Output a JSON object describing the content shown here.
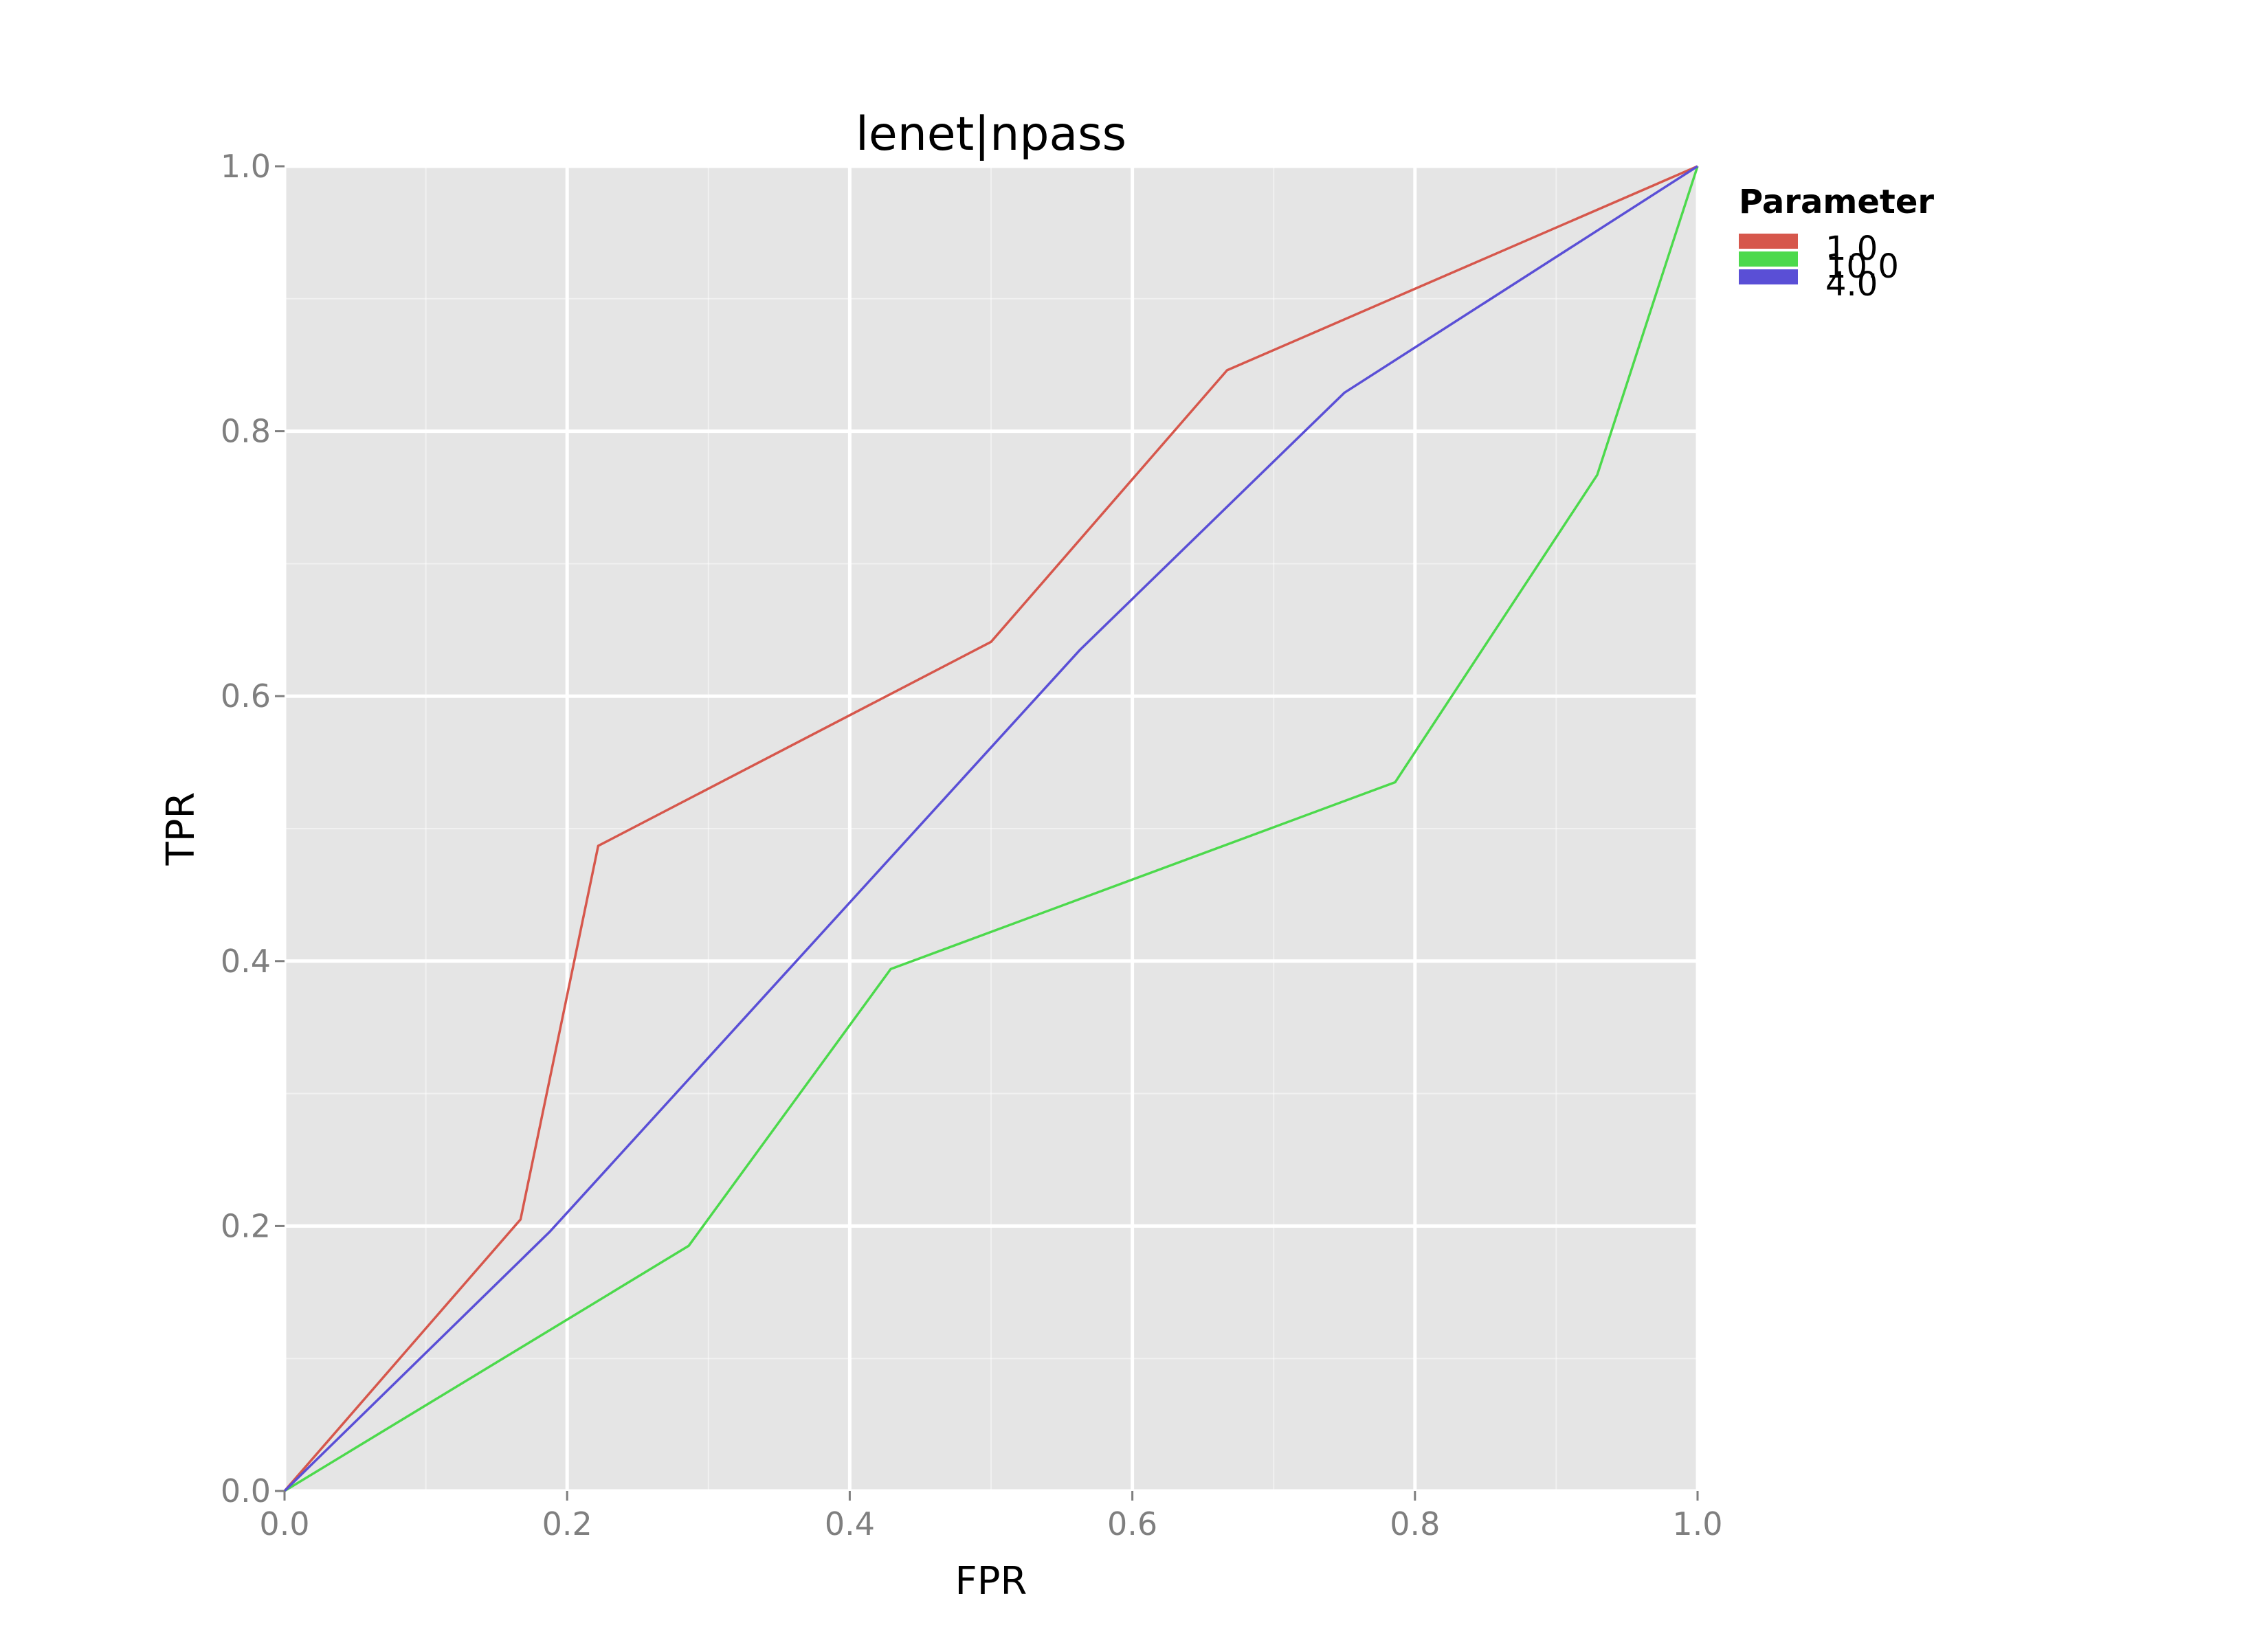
{
  "chart_data": {
    "type": "line",
    "title": "lenet|npass",
    "xlabel": "FPR",
    "ylabel": "TPR",
    "xlim": [
      0.0,
      1.0
    ],
    "ylim": [
      0.0,
      1.0
    ],
    "x_ticks": [
      "0.0",
      "0.2",
      "0.4",
      "0.6",
      "0.8",
      "1.0"
    ],
    "y_ticks": [
      "0.0",
      "0.2",
      "0.4",
      "0.6",
      "0.8",
      "1.0"
    ],
    "grid": true,
    "legend_position": "top-right",
    "legend_title": "Parameter",
    "background_color": "#e5e5e5",
    "grid_color": "#ffffff",
    "series": [
      {
        "name": "1.0",
        "color": "#d6574c",
        "points": [
          [
            0.0,
            0.0
          ],
          [
            0.167,
            0.205
          ],
          [
            0.222,
            0.487
          ],
          [
            0.5,
            0.641
          ],
          [
            0.667,
            0.846
          ],
          [
            1.0,
            1.0
          ]
        ]
      },
      {
        "name": "10.0",
        "color": "#4cd94c",
        "points": [
          [
            0.0,
            0.0
          ],
          [
            0.286,
            0.185
          ],
          [
            0.429,
            0.394
          ],
          [
            0.786,
            0.535
          ],
          [
            0.929,
            0.767
          ],
          [
            1.0,
            1.0
          ]
        ]
      },
      {
        "name": "4.0",
        "color": "#5a4fd6",
        "points": [
          [
            0.0,
            0.0
          ],
          [
            0.188,
            0.196
          ],
          [
            0.563,
            0.635
          ],
          [
            0.75,
            0.829
          ],
          [
            1.0,
            1.0
          ]
        ]
      }
    ]
  }
}
